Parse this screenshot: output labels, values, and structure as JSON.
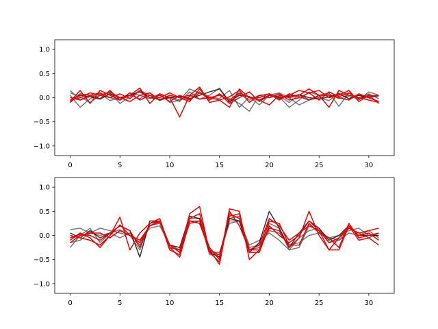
{
  "chart_data": [
    {
      "type": "line",
      "title": "",
      "xlabel": "",
      "ylabel": "",
      "xlim": [
        -1.55,
        32.55
      ],
      "ylim": [
        -1.2,
        1.2
      ],
      "xticks": [
        0,
        5,
        10,
        15,
        20,
        25,
        30
      ],
      "yticks": [
        -1.0,
        -0.5,
        0.0,
        0.5,
        1.0
      ],
      "xtick_labels": [
        "0",
        "5",
        "10",
        "15",
        "20",
        "25",
        "30"
      ],
      "ytick_labels": [
        "−1.0",
        "−0.5",
        "0.0",
        "0.5",
        "1.0"
      ],
      "grid": false,
      "x": [
        0,
        1,
        2,
        3,
        4,
        5,
        6,
        7,
        8,
        9,
        10,
        11,
        12,
        13,
        14,
        15,
        16,
        17,
        18,
        19,
        20,
        21,
        22,
        23,
        24,
        25,
        26,
        27,
        28,
        29,
        30,
        31
      ],
      "series": [
        {
          "color": "#555555",
          "opacity": 0.8,
          "values": [
            0.15,
            -0.05,
            0.02,
            0.08,
            -0.06,
            0.0,
            0.05,
            -0.02,
            0.1,
            -0.05,
            0.0,
            -0.08,
            0.12,
            -0.03,
            0.05,
            0.2,
            -0.1,
            0.08,
            -0.05,
            0.05,
            0.0,
            0.04,
            -0.1,
            0.06,
            -0.04,
            0.02,
            0.08,
            -0.02,
            0.05,
            0.0,
            0.06,
            0.02
          ]
        },
        {
          "color": "#555555",
          "opacity": 0.8,
          "values": [
            0.05,
            -0.2,
            -0.02,
            0.05,
            0.1,
            -0.12,
            0.02,
            0.15,
            0.05,
            -0.06,
            0.02,
            -0.05,
            0.18,
            0.1,
            -0.03,
            0.08,
            -0.02,
            -0.12,
            -0.28,
            0.05,
            0.08,
            0.02,
            -0.2,
            -0.05,
            0.12,
            0.05,
            0.1,
            -0.18,
            0.1,
            -0.05,
            0.12,
            0.05
          ]
        },
        {
          "color": "#555555",
          "opacity": 0.8,
          "values": [
            0.1,
            0.02,
            -0.1,
            0.05,
            0.0,
            -0.05,
            0.1,
            0.05,
            -0.02,
            0.08,
            -0.1,
            -0.05,
            0.02,
            0.12,
            0.02,
            -0.02,
            0.15,
            -0.2,
            0.02,
            -0.15,
            0.05,
            0.1,
            0.0,
            -0.15,
            -0.05,
            0.0,
            -0.06,
            0.1,
            0.02,
            -0.02,
            0.08,
            -0.02
          ]
        },
        {
          "color": "#111111",
          "opacity": 0.85,
          "values": [
            -0.05,
            0.05,
            0.02,
            -0.03,
            0.08,
            0.0,
            0.05,
            0.12,
            0.0,
            -0.03,
            0.0,
            0.03,
            -0.02,
            0.05,
            0.12,
            0.18,
            -0.08,
            0.05,
            0.02,
            -0.05,
            0.05,
            0.0,
            0.03,
            0.06,
            0.0,
            -0.03,
            0.02,
            0.08,
            -0.02,
            0.05,
            0.0,
            0.05
          ]
        },
        {
          "color": "#ee0000",
          "opacity": 1.0,
          "values": [
            -0.08,
            0.15,
            -0.12,
            0.15,
            0.05,
            -0.05,
            0.05,
            0.2,
            -0.12,
            0.08,
            0.0,
            -0.4,
            0.05,
            0.22,
            -0.1,
            -0.05,
            -0.2,
            0.18,
            0.0,
            -0.05,
            -0.15,
            0.05,
            0.0,
            0.05,
            0.18,
            0.05,
            -0.2,
            0.15,
            0.05,
            0.0,
            -0.05,
            -0.1
          ]
        },
        {
          "color": "#ee0000",
          "opacity": 1.0,
          "values": [
            -0.05,
            0.0,
            0.1,
            0.05,
            0.12,
            0.0,
            -0.08,
            0.05,
            0.1,
            -0.05,
            0.05,
            0.0,
            -0.08,
            0.18,
            -0.05,
            0.08,
            -0.12,
            0.0,
            0.12,
            -0.08,
            0.05,
            -0.02,
            0.05,
            0.15,
            0.1,
            -0.05,
            0.12,
            0.02,
            0.1,
            -0.02,
            0.03,
            0.05
          ]
        },
        {
          "color": "#ee0000",
          "opacity": 1.0,
          "values": [
            0.0,
            -0.05,
            0.05,
            0.1,
            0.0,
            0.08,
            -0.02,
            0.15,
            0.0,
            0.05,
            -0.08,
            0.05,
            -0.05,
            0.1,
            0.0,
            -0.05,
            0.02,
            0.15,
            -0.1,
            0.05,
            0.0,
            0.08,
            -0.05,
            0.0,
            0.1,
            0.15,
            0.0,
            0.05,
            0.15,
            -0.08,
            0.05,
            -0.12
          ]
        },
        {
          "color": "#ee0000",
          "opacity": 1.0,
          "values": [
            -0.1,
            0.08,
            0.05,
            -0.02,
            0.15,
            -0.05,
            0.1,
            -0.05,
            0.05,
            0.0,
            0.1,
            0.0,
            0.05,
            -0.03,
            0.0,
            0.05,
            -0.05,
            0.1,
            0.0,
            0.0,
            0.08,
            -0.05,
            0.08,
            0.02,
            -0.05,
            0.05,
            0.05,
            0.0,
            -0.05,
            0.08,
            0.0,
            -0.08
          ]
        }
      ]
    },
    {
      "type": "line",
      "title": "",
      "xlabel": "",
      "ylabel": "",
      "xlim": [
        -1.55,
        32.55
      ],
      "ylim": [
        -1.2,
        1.2
      ],
      "xticks": [
        0,
        5,
        10,
        15,
        20,
        25,
        30
      ],
      "yticks": [
        -1.0,
        -0.5,
        0.0,
        0.5,
        1.0
      ],
      "xtick_labels": [
        "0",
        "5",
        "10",
        "15",
        "20",
        "25",
        "30"
      ],
      "ytick_labels": [
        "−1.0",
        "−0.5",
        "0.0",
        "0.5",
        "1.0"
      ],
      "grid": false,
      "x": [
        0,
        1,
        2,
        3,
        4,
        5,
        6,
        7,
        8,
        9,
        10,
        11,
        12,
        13,
        14,
        15,
        16,
        17,
        18,
        19,
        20,
        21,
        22,
        23,
        24,
        25,
        26,
        27,
        28,
        29,
        30,
        31
      ],
      "series": [
        {
          "color": "#555555",
          "opacity": 0.8,
          "values": [
            0.12,
            0.15,
            0.05,
            0.15,
            0.1,
            0.05,
            0.0,
            -0.1,
            0.15,
            0.2,
            -0.2,
            -0.35,
            0.3,
            0.25,
            -0.3,
            -0.45,
            0.3,
            0.3,
            -0.25,
            -0.2,
            0.1,
            0.05,
            -0.2,
            -0.15,
            0.0,
            0.05,
            -0.05,
            0.0,
            0.1,
            0.15,
            0.0,
            0.0
          ]
        },
        {
          "color": "#555555",
          "opacity": 0.8,
          "values": [
            -0.25,
            0.0,
            0.15,
            -0.15,
            0.05,
            0.12,
            0.0,
            -0.3,
            0.25,
            0.3,
            -0.25,
            -0.3,
            0.35,
            0.35,
            -0.4,
            -0.4,
            0.35,
            0.4,
            -0.3,
            -0.25,
            0.25,
            0.15,
            -0.3,
            -0.25,
            0.2,
            0.1,
            -0.05,
            -0.1,
            0.05,
            0.0,
            0.1,
            -0.05
          ]
        },
        {
          "color": "#555555",
          "opacity": 0.8,
          "values": [
            -0.15,
            -0.1,
            0.05,
            0.0,
            0.05,
            -0.05,
            0.05,
            -0.2,
            0.2,
            0.25,
            -0.2,
            -0.3,
            0.3,
            0.3,
            -0.35,
            -0.35,
            0.25,
            0.3,
            -0.2,
            -0.1,
            0.05,
            -0.1,
            -0.3,
            -0.05,
            0.1,
            0.15,
            -0.15,
            -0.1,
            0.15,
            0.05,
            -0.05,
            0.05
          ]
        },
        {
          "color": "#111111",
          "opacity": 0.85,
          "values": [
            0.05,
            -0.05,
            0.1,
            -0.05,
            0.05,
            0.2,
            0.1,
            -0.45,
            0.3,
            0.3,
            -0.2,
            -0.25,
            0.4,
            0.35,
            -0.35,
            -0.45,
            0.35,
            0.3,
            -0.35,
            -0.15,
            0.5,
            0.15,
            -0.25,
            0.05,
            0.3,
            0.15,
            -0.1,
            0.0,
            0.2,
            0.0,
            0.0,
            0.0
          ]
        },
        {
          "color": "#ee0000",
          "opacity": 1.0,
          "values": [
            -0.1,
            0.05,
            -0.05,
            -0.25,
            0.0,
            0.38,
            -0.3,
            0.05,
            0.25,
            0.3,
            -0.3,
            -0.4,
            0.45,
            0.6,
            -0.35,
            -0.55,
            0.55,
            0.5,
            -0.5,
            -0.3,
            0.15,
            0.1,
            -0.25,
            -0.05,
            0.5,
            0.0,
            -0.3,
            -0.3,
            0.2,
            0.0,
            0.05,
            -0.1
          ]
        },
        {
          "color": "#ee0000",
          "opacity": 1.0,
          "values": [
            0.0,
            -0.05,
            -0.1,
            -0.2,
            0.0,
            0.22,
            0.0,
            -0.1,
            0.2,
            0.3,
            -0.25,
            -0.45,
            0.3,
            0.25,
            -0.3,
            -0.6,
            0.5,
            0.2,
            -0.3,
            -0.3,
            0.3,
            0.25,
            -0.2,
            -0.2,
            0.25,
            0.05,
            -0.05,
            -0.25,
            0.25,
            -0.05,
            0.0,
            0.05
          ]
        },
        {
          "color": "#ee0000",
          "opacity": 1.0,
          "values": [
            -0.05,
            0.02,
            0.0,
            -0.1,
            0.05,
            0.2,
            0.1,
            -0.25,
            0.25,
            0.35,
            -0.25,
            -0.3,
            0.35,
            0.45,
            -0.3,
            -0.4,
            0.4,
            0.45,
            -0.35,
            -0.35,
            0.2,
            0.0,
            -0.15,
            0.0,
            0.3,
            0.1,
            -0.3,
            -0.05,
            0.2,
            -0.1,
            -0.05,
            -0.2
          ]
        },
        {
          "color": "#ee0000",
          "opacity": 1.0,
          "values": [
            -0.15,
            0.0,
            0.05,
            0.05,
            -0.05,
            0.1,
            0.0,
            -0.15,
            0.2,
            0.28,
            -0.2,
            -0.35,
            0.25,
            0.3,
            -0.25,
            -0.5,
            0.45,
            0.35,
            -0.3,
            -0.2,
            0.35,
            0.2,
            -0.1,
            0.05,
            0.2,
            0.1,
            -0.15,
            -0.05,
            0.15,
            0.05,
            0.1,
            0.15
          ]
        }
      ]
    }
  ]
}
